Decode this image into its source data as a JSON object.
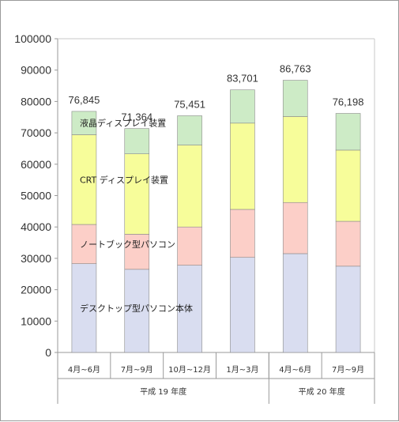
{
  "chart_data": {
    "type": "bar",
    "stacked": true,
    "categories": [
      "4月~6月",
      "7月~9月",
      "10月~12月",
      "1月~3月",
      "4月~6月",
      "7月~9月"
    ],
    "groups": [
      {
        "label": "平成 19 年度",
        "count": 4
      },
      {
        "label": "平成 20 年度",
        "count": 2
      }
    ],
    "series": [
      {
        "name": "デスクトップ型パソコン本体",
        "color": "#d9ddf0",
        "values": [
          28300,
          26500,
          27800,
          30300,
          31500,
          27500
        ]
      },
      {
        "name": "ノートブック型パソコン",
        "color": "#fccfc8",
        "values": [
          12500,
          11200,
          12200,
          15300,
          16300,
          14300
        ]
      },
      {
        "name": "CRT ディスプレイ装置",
        "color": "#f7fd9a",
        "values": [
          28600,
          25600,
          26100,
          27500,
          27400,
          22700
        ]
      },
      {
        "name": "液晶ディスプレイ装置",
        "color": "#cdebc6",
        "values": [
          7445,
          8064,
          9351,
          10601,
          11563,
          11698
        ]
      }
    ],
    "totals": [
      "76,845",
      "71,364",
      "75,451",
      "83,701",
      "86,763",
      "76,198"
    ],
    "yticks": [
      "0",
      "10000",
      "20000",
      "30000",
      "40000",
      "50000",
      "60000",
      "70000",
      "80000",
      "90000",
      "100000"
    ],
    "ylim": [
      0,
      100000
    ],
    "grid": false,
    "legend": "inline labels on first bar"
  }
}
